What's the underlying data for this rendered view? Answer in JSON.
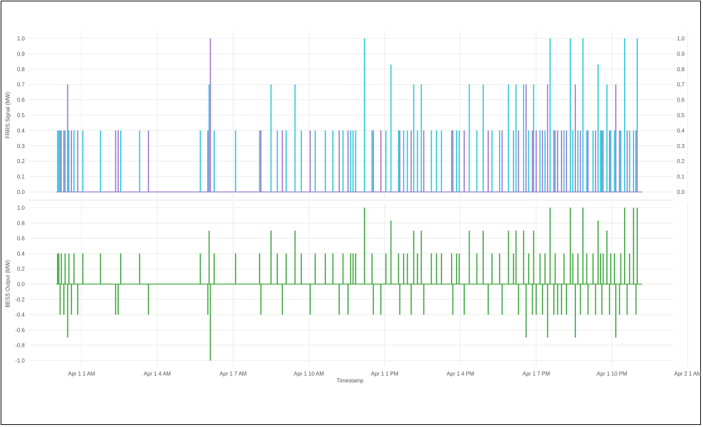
{
  "colors": {
    "frrs_up": "#26c6da",
    "frrs_down": "#a070d0",
    "bess": "#3aa53a",
    "grid": "#ececec",
    "zero": "#bbbbbb"
  },
  "chart_data": [
    {
      "type": "line",
      "panel": "top",
      "xlabel": "",
      "ylabel": "FRRS Signal (MW)",
      "ylim": [
        0,
        1.0
      ],
      "yticks": [
        "0.0",
        "0.1",
        "0.2",
        "0.3",
        "0.4",
        "0.5",
        "0.6",
        "0.7",
        "0.8",
        "0.9",
        "1.0"
      ],
      "right_yticks": true,
      "grid": true,
      "series": [
        {
          "color": "#26c6da",
          "x_hours": [
            0.05,
            0.1,
            0.2,
            0.35,
            0.5,
            0.7,
            1.05,
            1.75,
            2.55,
            3.3,
            5.7,
            6.05,
            6.25,
            7.1,
            8.05,
            8.5,
            8.75,
            9.1,
            9.45,
            9.7,
            10.25,
            10.65,
            10.95,
            11.35,
            11.65,
            11.75,
            11.85,
            12.2,
            12.5,
            13.05,
            13.25,
            13.55,
            13.75,
            13.9,
            14.15,
            14.3,
            14.45,
            14.85,
            15.05,
            15.25,
            15.65,
            15.85,
            15.95,
            16.35,
            16.65,
            16.9,
            17.25,
            17.55,
            17.9,
            18.1,
            18.2,
            18.5,
            18.7,
            18.9,
            19.15,
            19.35,
            19.55,
            19.75,
            20.1,
            20.35,
            20.45,
            20.65,
            20.85,
            21.0,
            21.25,
            21.45,
            21.55,
            21.65,
            21.8,
            21.95,
            22.1,
            22.35,
            22.5,
            22.7,
            22.85,
            23.0
          ],
          "values": [
            0.4,
            0.4,
            0.4,
            0.4,
            0.4,
            0.4,
            0.4,
            0.4,
            0.4,
            0.4,
            0.4,
            0.7,
            0.4,
            0.4,
            0.4,
            0.7,
            0.4,
            0.4,
            0.7,
            0.4,
            0.4,
            0.4,
            0.4,
            0.4,
            0.4,
            0.4,
            0.4,
            1.0,
            0.4,
            0.4,
            0.83,
            0.4,
            0.4,
            0.4,
            0.7,
            0.4,
            0.7,
            0.4,
            0.4,
            0.4,
            0.4,
            0.4,
            0.4,
            0.7,
            0.4,
            0.7,
            0.4,
            0.4,
            0.7,
            0.4,
            0.7,
            0.7,
            0.4,
            0.7,
            0.4,
            0.4,
            1.0,
            0.4,
            0.4,
            1.0,
            0.4,
            0.4,
            1.0,
            0.4,
            0.4,
            0.83,
            0.4,
            0.4,
            0.7,
            0.4,
            0.4,
            0.4,
            1.0,
            0.4,
            0.4,
            1.0
          ]
        },
        {
          "color": "#a070d0",
          "x_hours": [
            0.15,
            0.3,
            0.45,
            0.6,
            0.85,
            2.35,
            2.45,
            3.65,
            6.0,
            6.1,
            8.1,
            8.95,
            10.05,
            11.2,
            11.55,
            12.55,
            12.85,
            13.6,
            14.05,
            14.55,
            15.7,
            16.15,
            17.1,
            17.65,
            18.3,
            18.6,
            18.85,
            19.0,
            19.25,
            19.45,
            19.7,
            19.85,
            20.0,
            20.2,
            20.55,
            20.75,
            21.05,
            21.35,
            21.6,
            21.9,
            22.15,
            22.3,
            22.6,
            22.95
          ],
          "values": [
            0.4,
            0.4,
            0.7,
            0.4,
            0.4,
            0.4,
            0.4,
            0.4,
            0.4,
            1.0,
            0.4,
            0.4,
            0.4,
            0.4,
            0.4,
            0.4,
            0.4,
            0.4,
            0.4,
            0.4,
            0.4,
            0.4,
            0.4,
            0.4,
            0.4,
            0.7,
            0.4,
            0.4,
            0.4,
            0.7,
            0.4,
            0.4,
            0.4,
            0.4,
            0.7,
            0.4,
            0.4,
            0.4,
            0.4,
            0.4,
            0.7,
            0.4,
            0.4,
            0.4
          ]
        }
      ]
    },
    {
      "type": "line",
      "panel": "bottom",
      "xlabel": "Timestamp",
      "ylabel": "BESS Output (MW)",
      "ylim": [
        -1.0,
        1.0
      ],
      "yticks": [
        "-1.0",
        "-0.8",
        "-0.6",
        "-0.4",
        "-0.2",
        "0.0",
        "0.2",
        "0.4",
        "0.6",
        "0.8",
        "1.0"
      ],
      "xticks": [
        "Apr 1 1 AM",
        "Apr 1 4 AM",
        "Apr 1 7 AM",
        "Apr 1 10 AM",
        "Apr 1 1 PM",
        "Apr 1 4 PM",
        "Apr 1 7 PM",
        "Apr 1 10 PM",
        "Apr 2 1 AM"
      ],
      "xtick_hours": [
        1,
        4,
        7,
        10,
        13,
        16,
        19,
        22,
        25
      ],
      "xlim_hours": [
        0,
        23.2
      ],
      "grid": true,
      "series": [
        {
          "color": "#3aa53a",
          "x_hours": [
            0.05,
            0.1,
            0.15,
            0.2,
            0.3,
            0.35,
            0.45,
            0.5,
            0.6,
            0.7,
            0.85,
            1.05,
            1.75,
            2.35,
            2.45,
            2.55,
            3.3,
            3.65,
            5.7,
            6.0,
            6.05,
            6.1,
            6.25,
            7.1,
            8.05,
            8.1,
            8.5,
            8.75,
            8.95,
            9.1,
            9.45,
            9.7,
            10.05,
            10.25,
            10.65,
            10.95,
            11.2,
            11.35,
            11.55,
            11.65,
            11.75,
            11.85,
            12.2,
            12.5,
            12.55,
            12.85,
            13.05,
            13.25,
            13.55,
            13.6,
            13.75,
            13.9,
            14.05,
            14.15,
            14.3,
            14.45,
            14.55,
            14.85,
            15.05,
            15.25,
            15.65,
            15.7,
            15.85,
            15.95,
            16.15,
            16.35,
            16.65,
            16.9,
            17.1,
            17.25,
            17.55,
            17.65,
            17.9,
            18.1,
            18.2,
            18.3,
            18.5,
            18.6,
            18.7,
            18.85,
            18.9,
            19.0,
            19.15,
            19.25,
            19.35,
            19.45,
            19.55,
            19.7,
            19.75,
            19.85,
            20.0,
            20.1,
            20.2,
            20.35,
            20.45,
            20.55,
            20.65,
            20.75,
            20.85,
            21.0,
            21.05,
            21.25,
            21.35,
            21.45,
            21.55,
            21.6,
            21.65,
            21.8,
            21.9,
            21.95,
            22.1,
            22.15,
            22.3,
            22.35,
            22.5,
            22.6,
            22.7,
            22.85,
            22.95,
            23.0
          ],
          "values": [
            0.4,
            0.4,
            -0.4,
            0.4,
            -0.4,
            0.4,
            -0.7,
            0.4,
            -0.4,
            0.4,
            -0.4,
            0.4,
            0.4,
            -0.4,
            -0.4,
            0.4,
            0.4,
            -0.4,
            0.4,
            -0.4,
            0.7,
            -1.0,
            0.4,
            0.4,
            0.4,
            -0.4,
            0.7,
            0.4,
            -0.4,
            0.4,
            0.7,
            0.4,
            -0.4,
            0.4,
            0.4,
            0.4,
            -0.4,
            0.4,
            -0.4,
            0.4,
            0.4,
            0.4,
            1.0,
            0.4,
            -0.4,
            -0.4,
            0.4,
            0.83,
            0.4,
            -0.4,
            0.4,
            0.4,
            -0.4,
            0.7,
            0.4,
            0.7,
            -0.4,
            0.4,
            0.4,
            0.4,
            0.4,
            -0.4,
            0.4,
            0.4,
            -0.4,
            0.7,
            0.4,
            0.7,
            -0.4,
            0.4,
            0.4,
            -0.4,
            0.7,
            0.4,
            0.7,
            -0.4,
            0.7,
            -0.7,
            0.4,
            -0.4,
            0.7,
            -0.4,
            0.4,
            -0.4,
            0.4,
            -0.7,
            1.0,
            -0.4,
            0.4,
            -0.4,
            -0.4,
            0.4,
            -0.4,
            1.0,
            0.4,
            -0.7,
            0.4,
            -0.4,
            1.0,
            0.4,
            -0.4,
            0.4,
            -0.4,
            0.83,
            0.4,
            -0.4,
            0.4,
            0.7,
            -0.4,
            0.4,
            0.4,
            -0.7,
            -0.4,
            0.4,
            1.0,
            -0.4,
            0.4,
            1.0,
            -0.4,
            1.0
          ]
        }
      ]
    }
  ]
}
